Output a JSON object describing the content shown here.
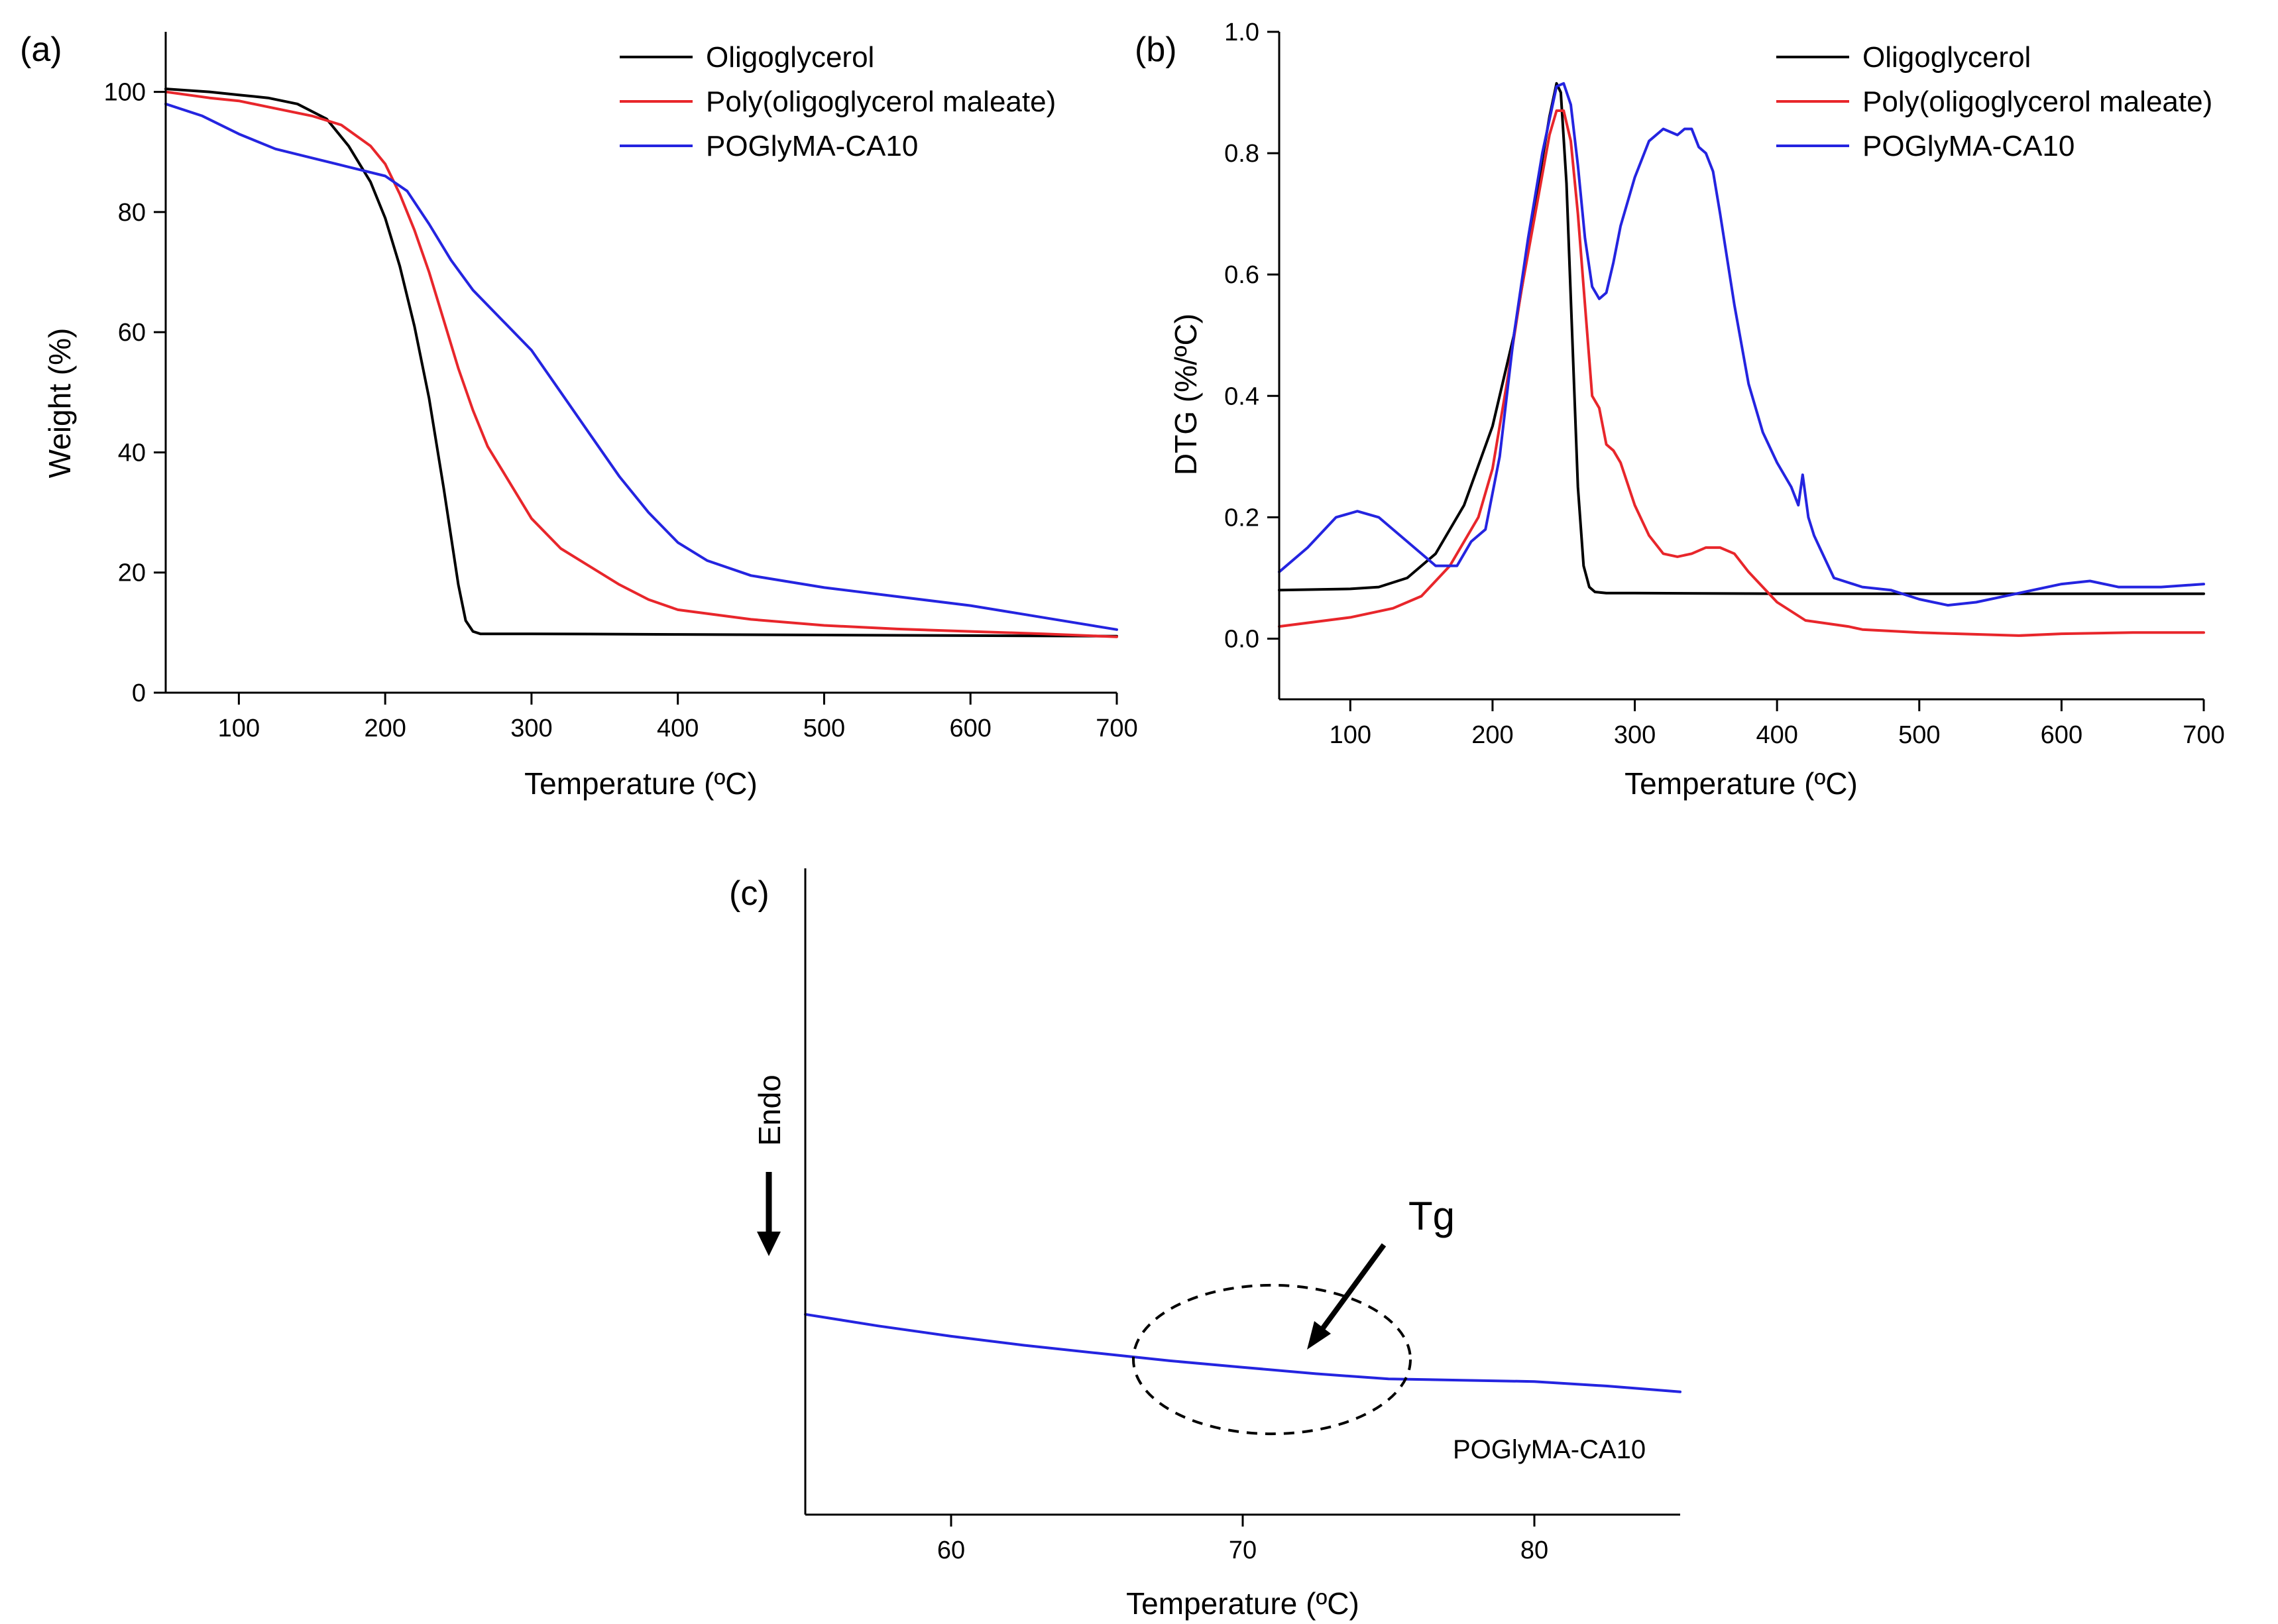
{
  "figure": {
    "colors": {
      "oligoglycerol": "#000000",
      "poly_oligoglycerol_maleate": "#e8262b",
      "poglyma_ca10": "#2424e0"
    }
  },
  "chart_data": [
    {
      "id": "a",
      "panel_label": "(a)",
      "type": "line",
      "title": "",
      "xlabel": "Temperature (ºC)",
      "ylabel": "Weight (%)",
      "xlim": [
        50,
        700
      ],
      "ylim": [
        0,
        110
      ],
      "xticks": [
        100,
        200,
        300,
        400,
        500,
        600,
        700
      ],
      "yticks": [
        0,
        20,
        40,
        60,
        80,
        100
      ],
      "legend_position": "top-right",
      "series": [
        {
          "name": "Oligoglycerol",
          "color": "#000000",
          "x": [
            50,
            80,
            100,
            120,
            140,
            160,
            175,
            190,
            200,
            210,
            220,
            230,
            240,
            245,
            250,
            255,
            260,
            265,
            270,
            300,
            400,
            500,
            600,
            700
          ],
          "y": [
            100.5,
            100,
            99.5,
            99,
            98,
            95.5,
            91,
            85,
            79,
            71,
            61,
            49,
            34,
            26,
            18,
            12,
            10.2,
            9.8,
            9.8,
            9.8,
            9.7,
            9.6,
            9.5,
            9.4
          ]
        },
        {
          "name": "Poly(oligoglycerol maleate)",
          "color": "#e8262b",
          "x": [
            50,
            80,
            100,
            120,
            150,
            170,
            190,
            200,
            210,
            220,
            230,
            240,
            250,
            260,
            270,
            280,
            300,
            320,
            340,
            360,
            380,
            400,
            450,
            500,
            550,
            600,
            650,
            700
          ],
          "y": [
            100,
            99,
            98.5,
            97.5,
            96,
            94.5,
            91,
            88,
            83,
            77,
            70,
            62,
            54,
            47,
            41,
            37,
            29,
            24,
            21,
            18,
            15.5,
            13.8,
            12.2,
            11.2,
            10.6,
            10.2,
            9.8,
            9.3
          ]
        },
        {
          "name": "POGlyMA-CA10",
          "color": "#2424e0",
          "x": [
            50,
            75,
            100,
            125,
            150,
            175,
            200,
            215,
            230,
            245,
            260,
            280,
            300,
            320,
            340,
            360,
            380,
            400,
            420,
            450,
            500,
            550,
            600,
            650,
            700
          ],
          "y": [
            98,
            96,
            93,
            90.5,
            89,
            87.5,
            86,
            83.5,
            78,
            72,
            67,
            62,
            57,
            50,
            43,
            36,
            30,
            25,
            22,
            19.5,
            17.5,
            16,
            14.5,
            12.5,
            10.5
          ]
        }
      ]
    },
    {
      "id": "b",
      "panel_label": "(b)",
      "type": "line",
      "title": "",
      "xlabel": "Temperature (ºC)",
      "ylabel": "DTG (%/ºC)",
      "xlim": [
        50,
        700
      ],
      "ylim": [
        -0.1,
        1.0
      ],
      "xticks": [
        100,
        200,
        300,
        400,
        500,
        600,
        700
      ],
      "yticks": [
        0.0,
        0.2,
        0.4,
        0.6,
        0.8,
        1.0
      ],
      "ytick_labels": [
        "0.0",
        "0.2",
        "0.4",
        "0.6",
        "0.8",
        "1.0"
      ],
      "legend_position": "top-right",
      "series": [
        {
          "name": "Oligoglycerol",
          "color": "#000000",
          "x": [
            50,
            100,
            120,
            140,
            160,
            180,
            200,
            215,
            225,
            235,
            240,
            245,
            248,
            252,
            256,
            260,
            264,
            268,
            272,
            280,
            300,
            400,
            500,
            600,
            700
          ],
          "y": [
            0.08,
            0.082,
            0.085,
            0.1,
            0.14,
            0.22,
            0.35,
            0.5,
            0.64,
            0.79,
            0.86,
            0.915,
            0.9,
            0.75,
            0.5,
            0.25,
            0.12,
            0.085,
            0.077,
            0.075,
            0.075,
            0.074,
            0.074,
            0.074,
            0.074
          ]
        },
        {
          "name": "Poly(oligoglycerol maleate)",
          "color": "#e8262b",
          "x": [
            50,
            100,
            130,
            150,
            170,
            190,
            200,
            210,
            220,
            230,
            240,
            245,
            250,
            255,
            260,
            265,
            270,
            275,
            280,
            285,
            290,
            300,
            310,
            320,
            330,
            340,
            350,
            360,
            370,
            380,
            400,
            420,
            450,
            460,
            500,
            570,
            600,
            650,
            700
          ],
          "y": [
            0.02,
            0.035,
            0.05,
            0.07,
            0.12,
            0.2,
            0.28,
            0.42,
            0.57,
            0.7,
            0.83,
            0.87,
            0.87,
            0.82,
            0.7,
            0.55,
            0.4,
            0.38,
            0.32,
            0.31,
            0.29,
            0.22,
            0.17,
            0.14,
            0.135,
            0.14,
            0.15,
            0.15,
            0.14,
            0.11,
            0.06,
            0.03,
            0.02,
            0.015,
            0.01,
            0.005,
            0.008,
            0.01,
            0.01
          ]
        },
        {
          "name": "POGlyMA-CA10",
          "color": "#2424e0",
          "x": [
            50,
            70,
            90,
            105,
            120,
            140,
            160,
            175,
            185,
            195,
            205,
            215,
            225,
            235,
            245,
            250,
            255,
            260,
            265,
            270,
            275,
            280,
            285,
            290,
            300,
            310,
            320,
            330,
            335,
            340,
            345,
            350,
            355,
            360,
            370,
            380,
            390,
            400,
            410,
            415,
            418,
            422,
            426,
            430,
            440,
            460,
            480,
            500,
            520,
            540,
            560,
            580,
            600,
            620,
            640,
            670,
            700
          ],
          "y": [
            0.11,
            0.15,
            0.2,
            0.21,
            0.2,
            0.16,
            0.12,
            0.12,
            0.16,
            0.18,
            0.3,
            0.5,
            0.66,
            0.8,
            0.91,
            0.915,
            0.88,
            0.78,
            0.66,
            0.58,
            0.56,
            0.57,
            0.62,
            0.68,
            0.76,
            0.82,
            0.84,
            0.83,
            0.84,
            0.84,
            0.81,
            0.8,
            0.77,
            0.7,
            0.55,
            0.42,
            0.34,
            0.29,
            0.25,
            0.22,
            0.27,
            0.2,
            0.17,
            0.15,
            0.1,
            0.085,
            0.08,
            0.065,
            0.055,
            0.06,
            0.07,
            0.08,
            0.09,
            0.095,
            0.085,
            0.085,
            0.09
          ]
        }
      ]
    },
    {
      "id": "c",
      "panel_label": "(c)",
      "type": "line",
      "title": "",
      "xlabel": "Temperature (ºC)",
      "ylabel": "Endo",
      "ylabel_arrow": "down",
      "xlim": [
        55,
        85
      ],
      "ylim": [
        0,
        100
      ],
      "xticks": [
        60,
        70,
        80
      ],
      "y_axis_ticks": false,
      "annotation": {
        "text": "Tg",
        "ellipse_center_x": 71,
        "ellipse_center_y": 24,
        "ellipse_width_x": 9.5,
        "ellipse_height_y": 23
      },
      "series": [
        {
          "name": "POGlyMA-CA10",
          "color": "#2424e0",
          "x": [
            55,
            57.5,
            60,
            62.5,
            65,
            67.5,
            70,
            72.5,
            75,
            77.5,
            80,
            82.5,
            85
          ],
          "y": [
            31,
            29.2,
            27.6,
            26.2,
            25,
            23.8,
            22.8,
            21.8,
            21,
            20.8,
            20.6,
            19.9,
            19
          ]
        }
      ]
    }
  ]
}
